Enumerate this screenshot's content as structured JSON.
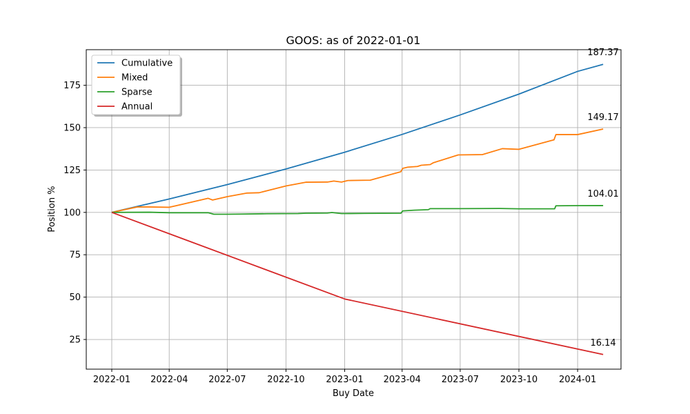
{
  "chart_data": {
    "type": "line",
    "title": "GOOS: as of 2022-01-01",
    "xlabel": "Buy Date",
    "ylabel": "Position %",
    "xlim": [
      "2021-11-22",
      "2024-03-09"
    ],
    "ylim": [
      7.5,
      196
    ],
    "x_ticks": [
      "2022-01",
      "2022-04",
      "2022-07",
      "2022-10",
      "2023-01",
      "2023-04",
      "2023-07",
      "2023-10",
      "2024-01"
    ],
    "y_ticks": [
      25,
      50,
      75,
      100,
      125,
      150,
      175
    ],
    "grid": true,
    "legend_position": "top-left",
    "series": [
      {
        "name": "Cumulative",
        "color": "#1f77b4",
        "end_label": "187.37",
        "points": [
          [
            "2022-01-01",
            100
          ],
          [
            "2022-04-01",
            107.9
          ],
          [
            "2022-07-01",
            116.4
          ],
          [
            "2022-10-01",
            125.6
          ],
          [
            "2023-01-01",
            135.5
          ],
          [
            "2023-04-01",
            146.0
          ],
          [
            "2023-07-01",
            157.5
          ],
          [
            "2023-10-01",
            169.8
          ],
          [
            "2024-01-01",
            183.2
          ],
          [
            "2024-02-10",
            187.37
          ]
        ]
      },
      {
        "name": "Mixed",
        "color": "#ff7f0e",
        "end_label": "149.17",
        "points": [
          [
            "2022-01-01",
            100
          ],
          [
            "2022-02-10",
            103.2
          ],
          [
            "2022-03-01",
            103.2
          ],
          [
            "2022-04-01",
            103.0
          ],
          [
            "2022-06-01",
            108.3
          ],
          [
            "2022-06-08",
            107.3
          ],
          [
            "2022-07-01",
            109.3
          ],
          [
            "2022-08-01",
            111.4
          ],
          [
            "2022-08-20",
            111.6
          ],
          [
            "2022-10-01",
            115.6
          ],
          [
            "2022-11-01",
            117.8
          ],
          [
            "2022-12-05",
            117.9
          ],
          [
            "2022-12-15",
            118.5
          ],
          [
            "2022-12-27",
            117.9
          ],
          [
            "2023-01-06",
            118.8
          ],
          [
            "2023-02-10",
            119.0
          ],
          [
            "2023-03-30",
            124.0
          ],
          [
            "2023-04-02",
            126.0
          ],
          [
            "2023-04-10",
            126.7
          ],
          [
            "2023-04-25",
            127.1
          ],
          [
            "2023-05-01",
            127.8
          ],
          [
            "2023-05-15",
            128.2
          ],
          [
            "2023-05-20",
            129.3
          ],
          [
            "2023-06-28",
            133.9
          ],
          [
            "2023-08-05",
            134.1
          ],
          [
            "2023-09-05",
            137.6
          ],
          [
            "2023-10-01",
            137.2
          ],
          [
            "2023-11-25",
            142.8
          ],
          [
            "2023-11-28",
            145.9
          ],
          [
            "2024-01-01",
            145.9
          ],
          [
            "2024-02-10",
            149.17
          ]
        ]
      },
      {
        "name": "Sparse",
        "color": "#2ca02c",
        "end_label": "104.01",
        "points": [
          [
            "2022-01-01",
            100
          ],
          [
            "2022-03-01",
            100.1
          ],
          [
            "2022-04-01",
            99.8
          ],
          [
            "2022-06-01",
            99.8
          ],
          [
            "2022-06-10",
            98.9
          ],
          [
            "2022-07-01",
            98.9
          ],
          [
            "2022-07-25",
            99.0
          ],
          [
            "2022-09-01",
            99.2
          ],
          [
            "2022-10-20",
            99.3
          ],
          [
            "2022-11-01",
            99.5
          ],
          [
            "2022-12-05",
            99.6
          ],
          [
            "2022-12-12",
            99.9
          ],
          [
            "2022-12-27",
            99.3
          ],
          [
            "2023-02-01",
            99.4
          ],
          [
            "2023-03-30",
            99.5
          ],
          [
            "2023-04-02",
            100.9
          ],
          [
            "2023-04-20",
            101.3
          ],
          [
            "2023-05-12",
            101.6
          ],
          [
            "2023-05-15",
            102.2
          ],
          [
            "2023-06-30",
            102.2
          ],
          [
            "2023-09-01",
            102.3
          ],
          [
            "2023-10-01",
            102.1
          ],
          [
            "2023-11-26",
            102.1
          ],
          [
            "2023-11-28",
            103.9
          ],
          [
            "2024-01-01",
            104.0
          ],
          [
            "2024-02-10",
            104.01
          ]
        ]
      },
      {
        "name": "Annual",
        "color": "#d62728",
        "end_label": "16.14",
        "points": [
          [
            "2022-01-01",
            100
          ],
          [
            "2023-01-01",
            48.9
          ],
          [
            "2024-02-10",
            16.14
          ]
        ]
      }
    ]
  }
}
